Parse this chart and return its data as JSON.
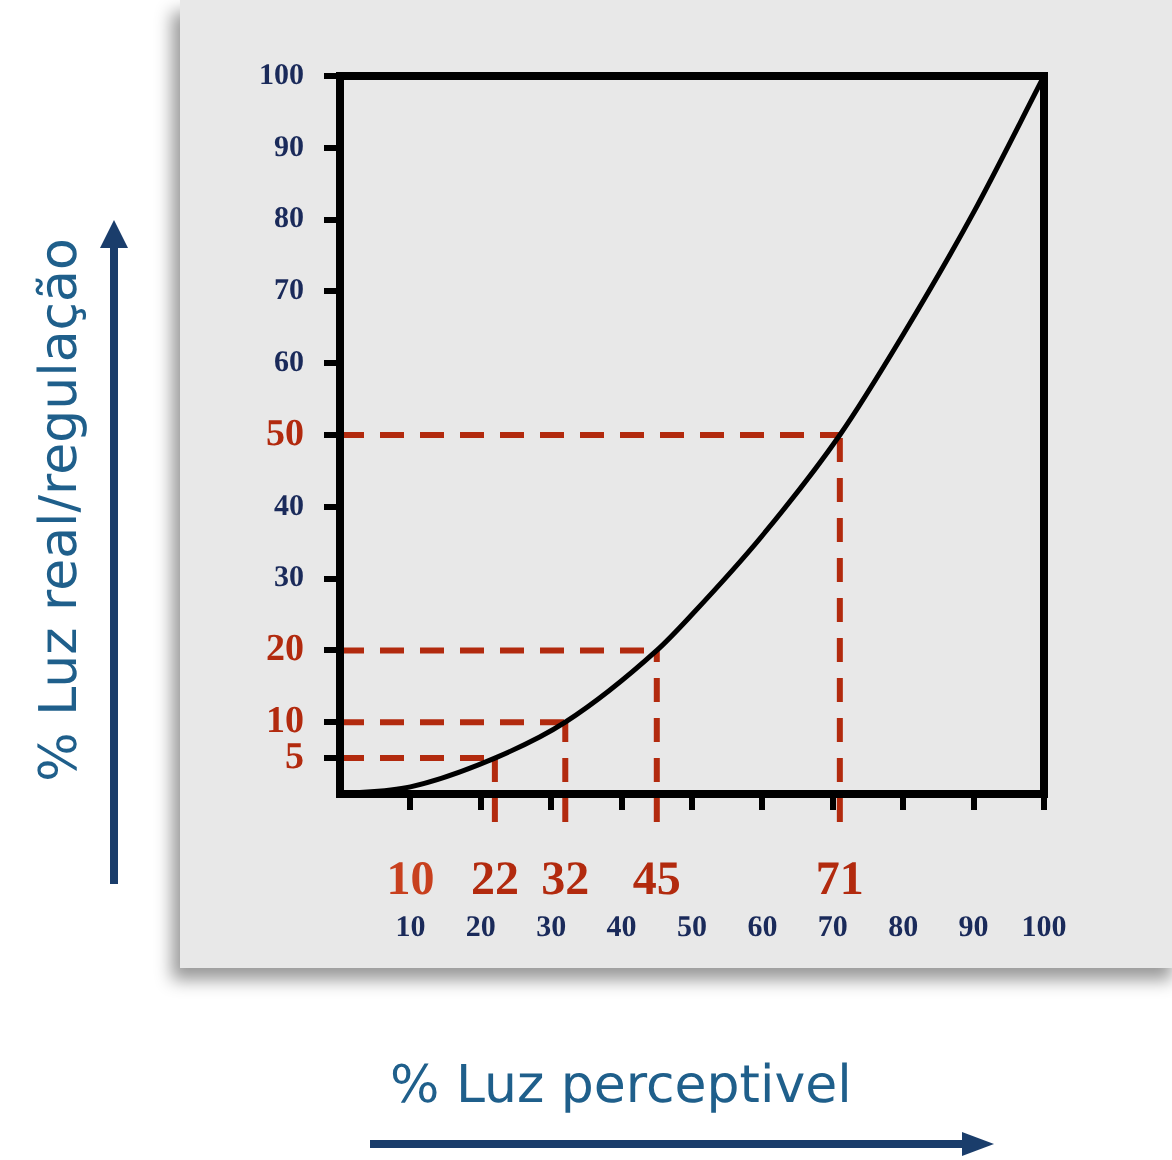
{
  "chart_data": {
    "type": "line",
    "xlabel": "% Luz perceptivel",
    "ylabel": "% Luz real/regulação",
    "x": [
      0,
      10,
      22,
      32,
      45,
      50,
      60,
      71,
      80,
      90,
      100
    ],
    "series": [
      {
        "color": "#000000",
        "values": [
          0,
          1,
          5,
          10,
          20,
          25,
          36,
          50,
          64,
          81,
          100
        ]
      }
    ],
    "xlim": [
      0,
      100
    ],
    "ylim": [
      0,
      100
    ],
    "xticks": [
      10,
      20,
      30,
      40,
      50,
      60,
      70,
      80,
      90,
      100
    ],
    "yticks": [
      5,
      10,
      20,
      30,
      40,
      50,
      60,
      70,
      80,
      90,
      100
    ],
    "grid": false,
    "legend": false,
    "marker": "none",
    "line_style": "solid",
    "ref_lines": [
      {
        "axis": "y",
        "value": 5,
        "color": "#b22a0e",
        "line_style": "dashed"
      },
      {
        "axis": "y",
        "value": 10,
        "color": "#b22a0e",
        "line_style": "dashed"
      },
      {
        "axis": "y",
        "value": 20,
        "color": "#b22a0e",
        "line_style": "dashed"
      },
      {
        "axis": "y",
        "value": 50,
        "color": "#b22a0e",
        "line_style": "dashed"
      },
      {
        "axis": "x",
        "value": 22,
        "label": "22",
        "color": "#b22a0e",
        "line_style": "dashed"
      },
      {
        "axis": "x",
        "value": 32,
        "label": "32",
        "color": "#b22a0e",
        "line_style": "dashed"
      },
      {
        "axis": "x",
        "value": 45,
        "label": "45",
        "color": "#b22a0e",
        "line_style": "dashed"
      },
      {
        "axis": "x",
        "value": 71,
        "label": "71",
        "color": "#b22a0e",
        "line_style": "dashed"
      }
    ],
    "annotations": [
      {
        "text": "10",
        "x": 10,
        "y": 0
      }
    ]
  }
}
